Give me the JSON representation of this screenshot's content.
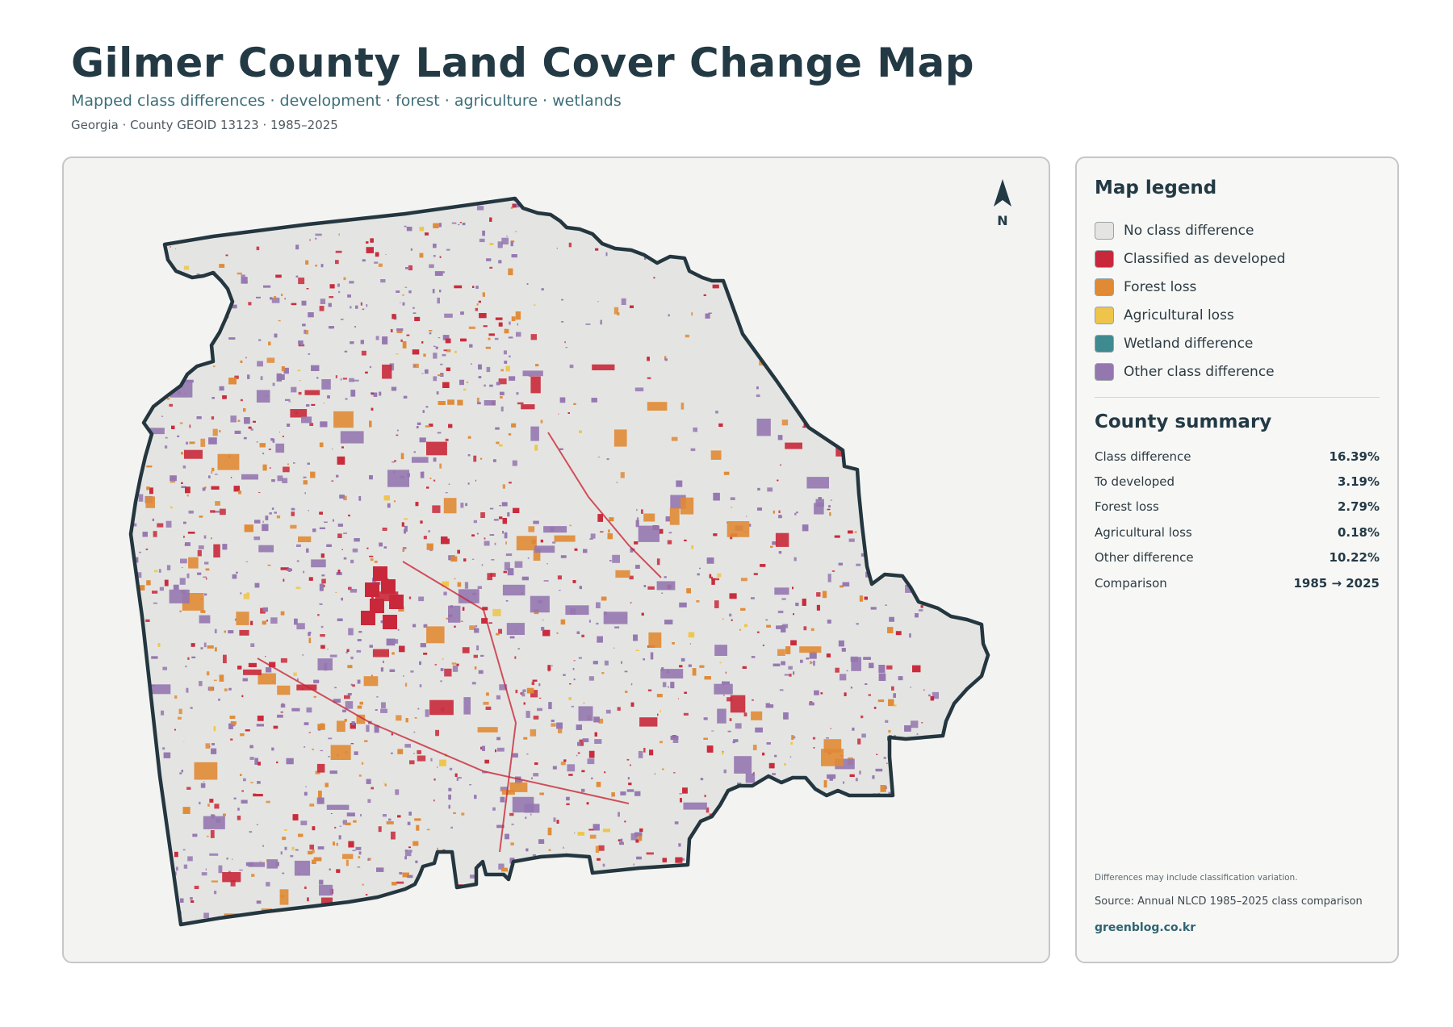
{
  "header": {
    "title": "Gilmer County Land Cover Change Map",
    "subtitle": "Mapped class differences · development · forest · agriculture · wetlands",
    "meta": "Georgia · County GEOID 13123 · 1985–2025"
  },
  "map": {
    "north_label": "N",
    "colors": {
      "background": "#f3f3f1",
      "county_fill": "#e4e5e2",
      "outline": "#24363f"
    }
  },
  "legend": {
    "heading": "Map legend",
    "items": [
      {
        "label": "No class difference",
        "color": "#e4e5e2"
      },
      {
        "label": "Classified as developed",
        "color": "#c9283a"
      },
      {
        "label": "Forest loss",
        "color": "#e08a35"
      },
      {
        "label": "Agricultural loss",
        "color": "#eec54a"
      },
      {
        "label": "Wetland difference",
        "color": "#3f8a90"
      },
      {
        "label": "Other class difference",
        "color": "#9577b0"
      }
    ]
  },
  "summary": {
    "heading": "County summary",
    "rows": [
      {
        "label": "Class difference",
        "value": "16.39%"
      },
      {
        "label": "To developed",
        "value": "3.19%"
      },
      {
        "label": "Forest loss",
        "value": "2.79%"
      },
      {
        "label": "Agricultural loss",
        "value": "0.18%"
      },
      {
        "label": "Other difference",
        "value": "10.22%"
      },
      {
        "label": "Comparison",
        "value": "1985 → 2025"
      }
    ]
  },
  "footer": {
    "note": "Differences may include classification variation.",
    "source": "Source: Annual NLCD 1985–2025 class comparison",
    "site": "greenblog.co.kr"
  }
}
